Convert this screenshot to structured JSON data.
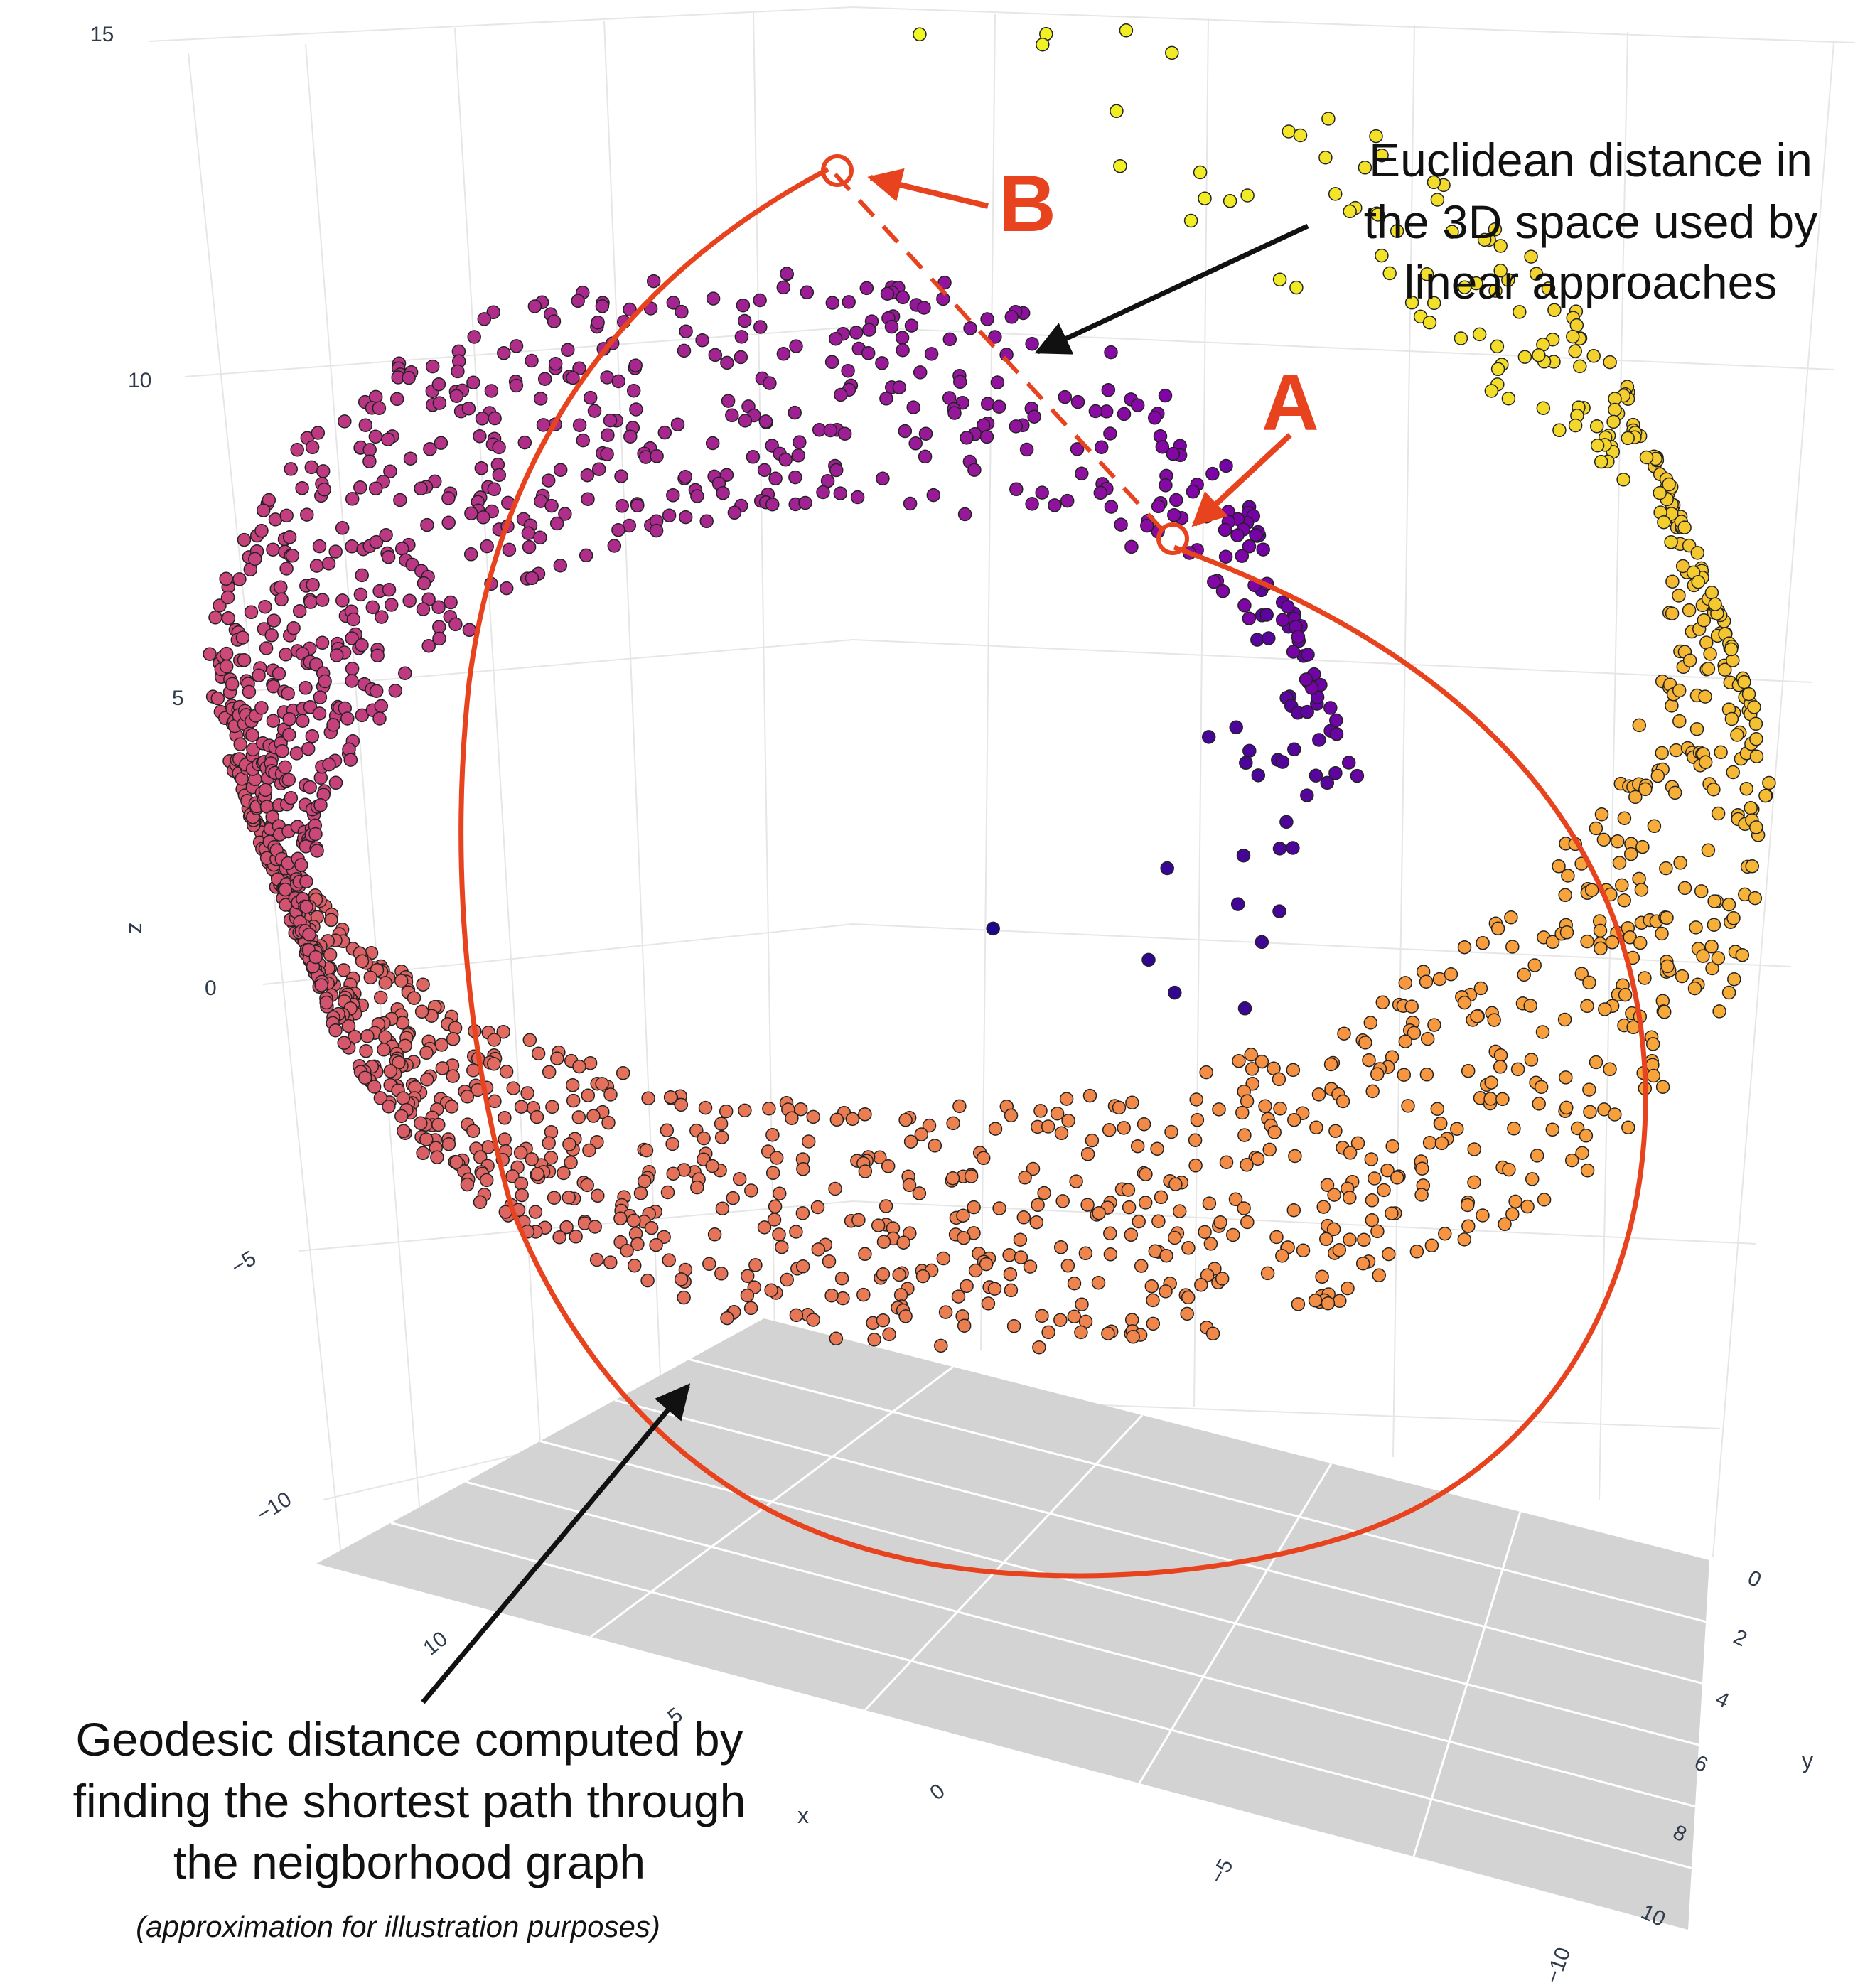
{
  "chart_data": {
    "type": "scatter",
    "dimensions": "3d",
    "title": "",
    "axes": {
      "x": {
        "label": "x",
        "ticks": [
          "10",
          "5",
          "0",
          "−5",
          "−10"
        ]
      },
      "y": {
        "label": "y",
        "ticks": [
          "0",
          "2",
          "4",
          "6",
          "8",
          "10"
        ]
      },
      "z": {
        "label": "z",
        "ticks": [
          "15",
          "10",
          "5",
          "0",
          "−5",
          "−10"
        ],
        "range": [
          -10,
          15
        ]
      }
    },
    "grid": true,
    "floor_fill": "#d3d3d3",
    "colorscale": [
      "#0d0887",
      "#7e03a8",
      "#cc4778",
      "#f89540",
      "#f0f921"
    ],
    "series": [
      {
        "shape": "swiss-roll",
        "points": 2000,
        "t_range": [
          4.7,
          14.1
        ],
        "y_range": [
          0,
          10
        ]
      }
    ],
    "annotations": {
      "euclidean": {
        "lines": [
          "Euclidean distance in",
          "the 3D space used by",
          "linear approaches"
        ]
      },
      "geodesic": {
        "lines": [
          "Geodesic distance computed by",
          "finding the shortest path through",
          "the neigborhood graph"
        ],
        "note": "(approximation for illustration purposes)"
      },
      "point_a": {
        "label": "A"
      },
      "point_b": {
        "label": "B"
      }
    },
    "accent_color": "#e8431f"
  }
}
